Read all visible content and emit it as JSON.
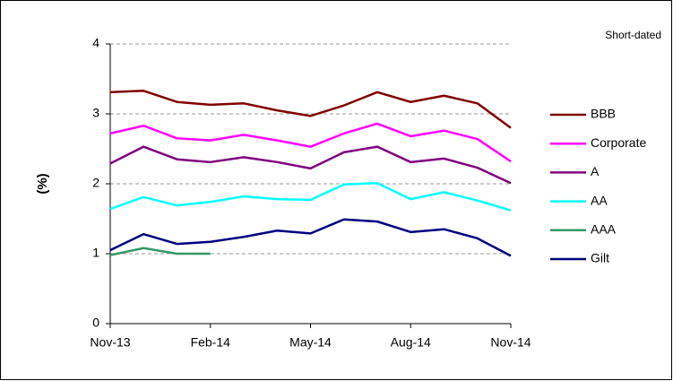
{
  "chart_data": {
    "type": "line",
    "annotation": "Short-dated",
    "y_label": "(%)",
    "categories": [
      "Nov-13",
      null,
      null,
      "Feb-14",
      null,
      null,
      "May-14",
      null,
      null,
      "Aug-14",
      null,
      null,
      "Nov-14"
    ],
    "series": [
      {
        "name": "BBB",
        "color": "#800000",
        "values": [
          3.31,
          3.33,
          3.17,
          3.13,
          3.15,
          3.05,
          2.97,
          3.12,
          3.31,
          3.17,
          3.26,
          3.15,
          2.8
        ]
      },
      {
        "name": "Corporate",
        "color": "#ff00ff",
        "values": [
          2.72,
          2.83,
          2.65,
          2.62,
          2.7,
          2.62,
          2.53,
          2.72,
          2.86,
          2.68,
          2.76,
          2.64,
          2.32
        ]
      },
      {
        "name": "A",
        "color": "#800080",
        "values": [
          2.29,
          2.53,
          2.35,
          2.31,
          2.38,
          2.31,
          2.22,
          2.45,
          2.53,
          2.31,
          2.36,
          2.23,
          2.01
        ]
      },
      {
        "name": "AA",
        "color": "#00ffff",
        "values": [
          1.64,
          1.81,
          1.69,
          1.74,
          1.82,
          1.78,
          1.77,
          1.99,
          2.01,
          1.78,
          1.88,
          1.76,
          1.62
        ]
      },
      {
        "name": "AAA",
        "color": "#339966",
        "values": [
          0.98,
          1.08,
          1.0,
          1.0,
          null,
          null,
          null,
          null,
          null,
          null,
          null,
          null,
          null
        ]
      },
      {
        "name": "Gilt",
        "color": "#000080",
        "values": [
          1.05,
          1.28,
          1.14,
          1.17,
          1.24,
          1.33,
          1.29,
          1.49,
          1.46,
          1.31,
          1.35,
          1.22,
          0.97
        ]
      }
    ],
    "ylim": [
      0,
      4
    ],
    "yticks": [
      0,
      1,
      2,
      3,
      4
    ],
    "grid": true,
    "legend": "right"
  }
}
